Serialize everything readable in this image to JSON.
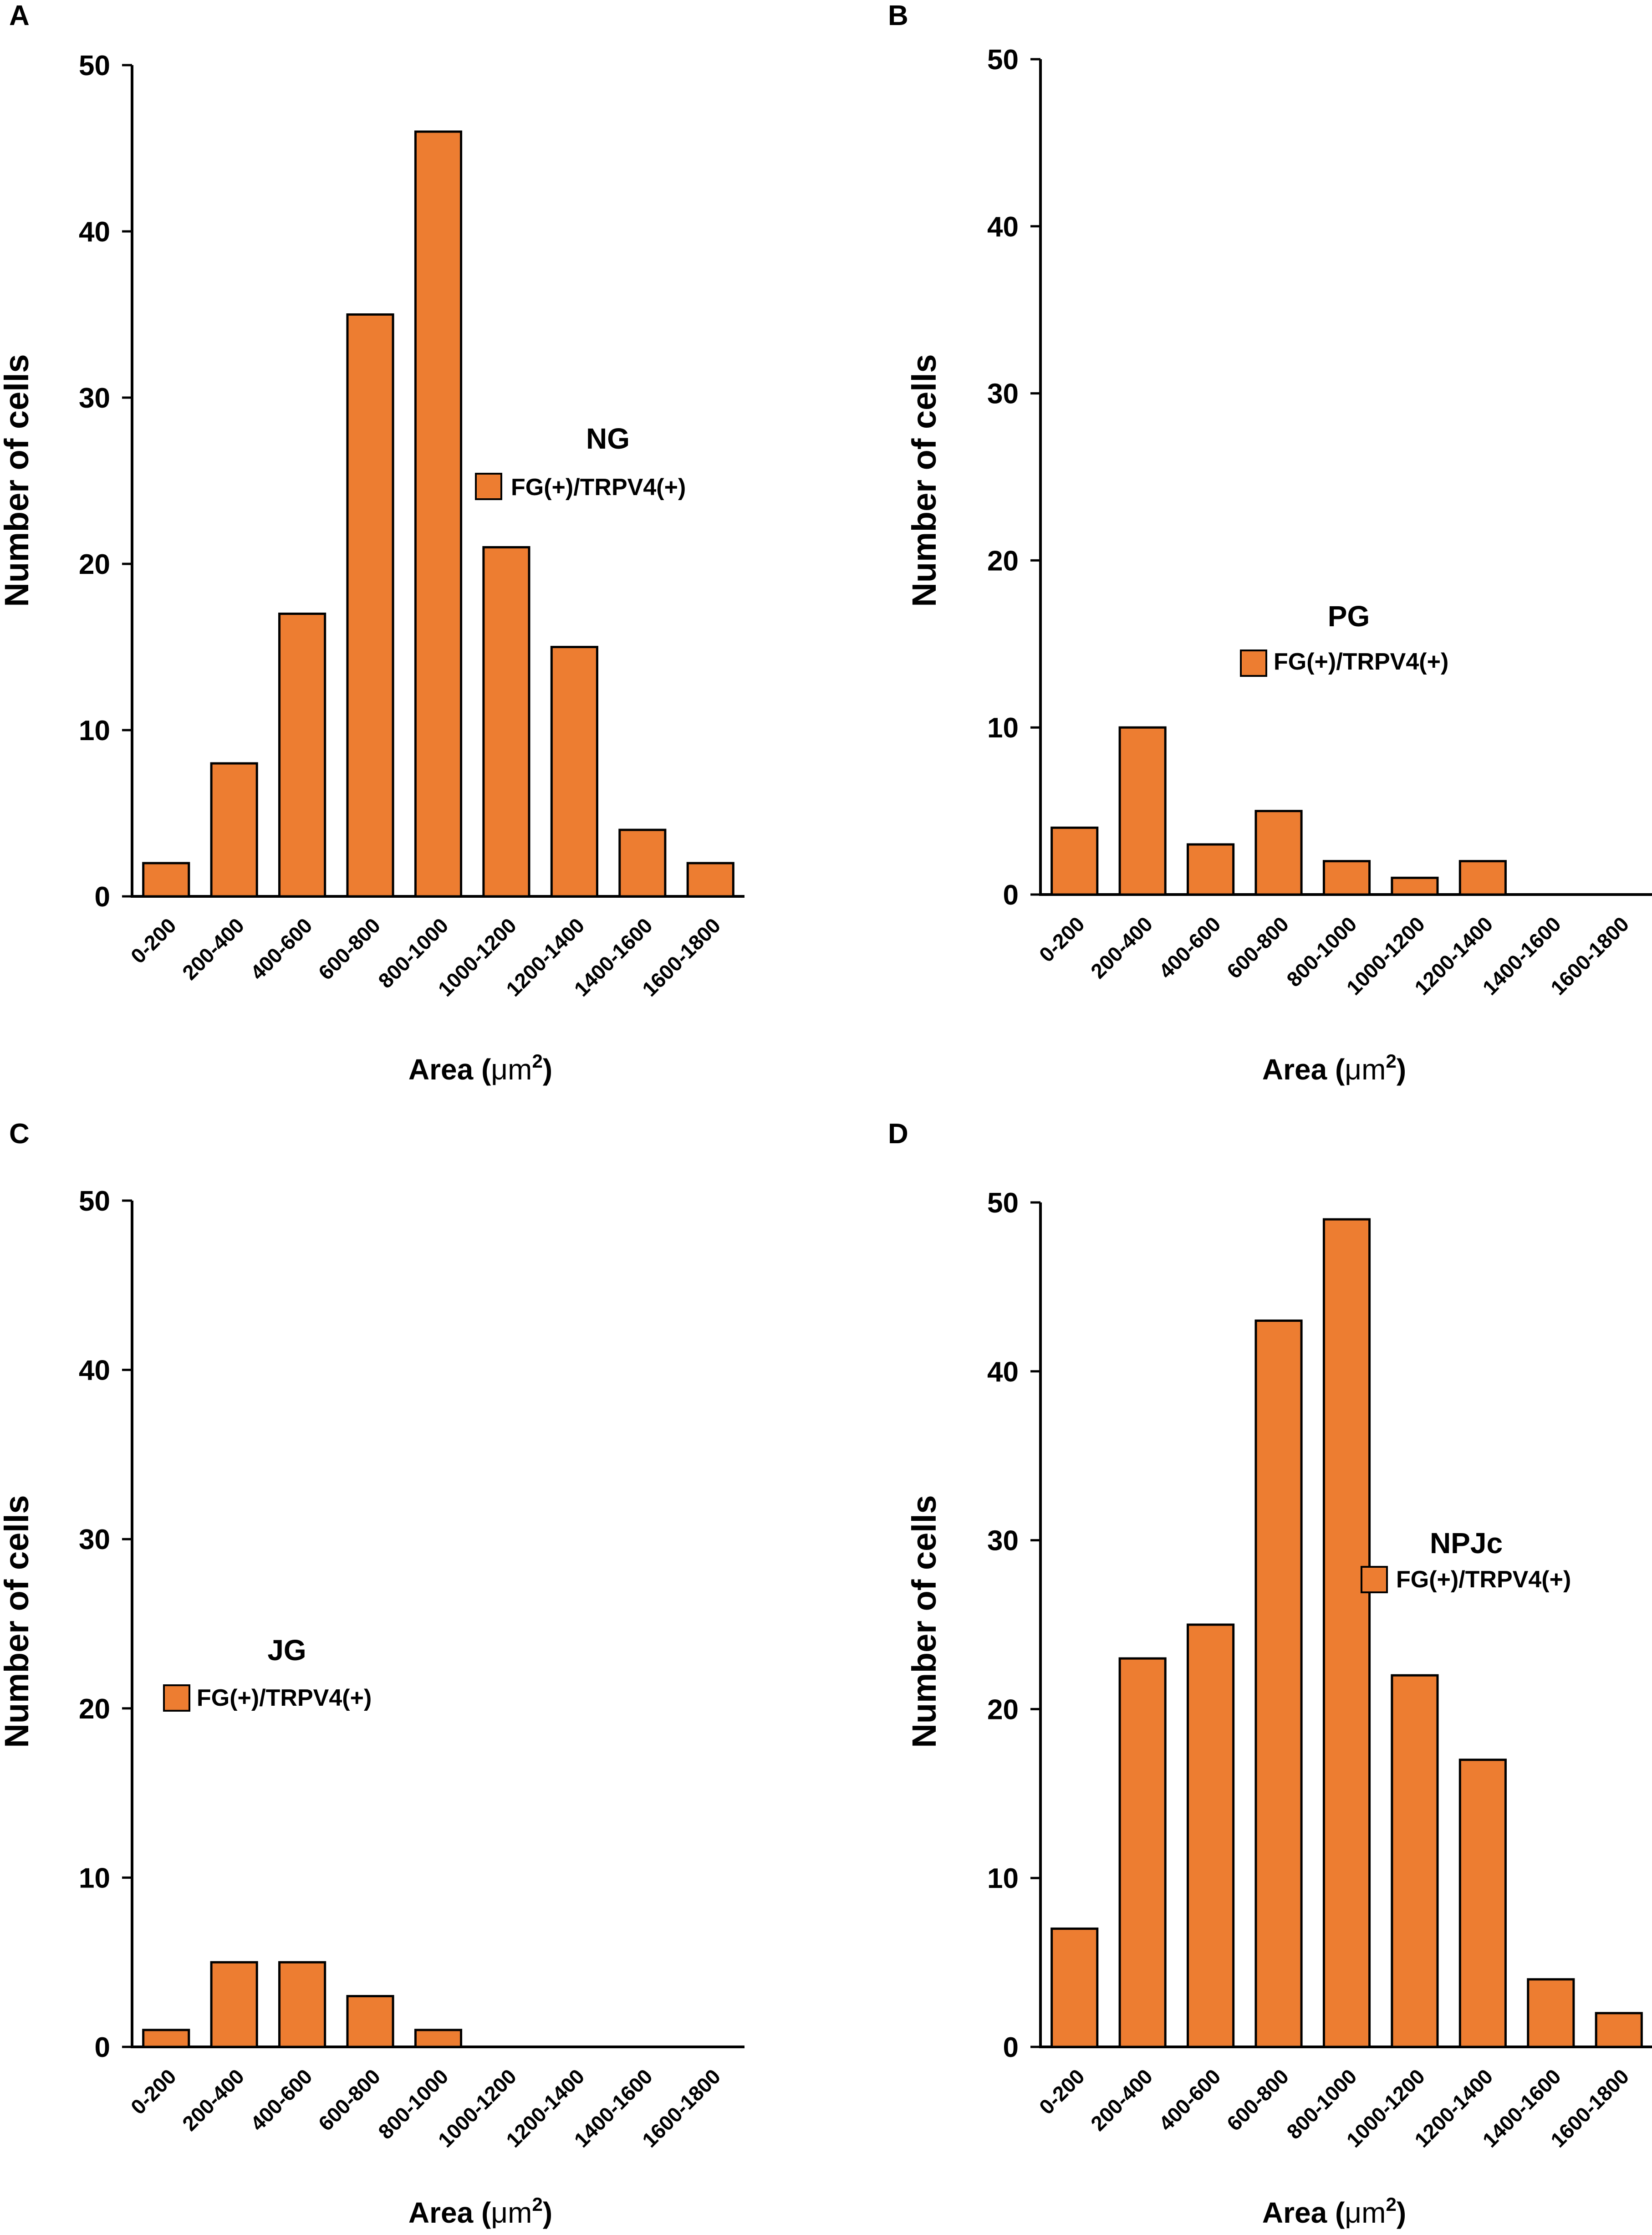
{
  "figure": {
    "colors": {
      "bar": "#ED7D31",
      "bar_stroke": "#000000",
      "axis": "#000000",
      "background": "#ffffff"
    }
  },
  "chart_data": [
    {
      "panel": "A",
      "type": "bar",
      "title": "NG",
      "legend": "FG(+)/TRPV4(+)",
      "xlabel_main": "Area (",
      "xlabel_unit": "μm",
      "xlabel_sup": "2",
      "xlabel_close": ")",
      "ylabel": "Number of cells",
      "ylim": [
        0,
        50
      ],
      "yticks": [
        0,
        10,
        20,
        30,
        40,
        50
      ],
      "categories": [
        "0-200",
        "200-400",
        "400-600",
        "600-800",
        "800-1000",
        "1000-1200",
        "1200-1400",
        "1400-1600",
        "1600-1800"
      ],
      "values": [
        2,
        8,
        17,
        35,
        46,
        21,
        15,
        4,
        2
      ]
    },
    {
      "panel": "B",
      "type": "bar",
      "title": "PG",
      "legend": "FG(+)/TRPV4(+)",
      "xlabel_main": "Area (",
      "xlabel_unit": "μm",
      "xlabel_sup": "2",
      "xlabel_close": ")",
      "ylabel": "Number of cells",
      "ylim": [
        0,
        50
      ],
      "yticks": [
        0,
        10,
        20,
        30,
        40,
        50
      ],
      "categories": [
        "0-200",
        "200-400",
        "400-600",
        "600-800",
        "800-1000",
        "1000-1200",
        "1200-1400",
        "1400-1600",
        "1600-1800"
      ],
      "values": [
        4,
        10,
        3,
        5,
        2,
        1,
        2,
        0,
        0
      ]
    },
    {
      "panel": "C",
      "type": "bar",
      "title": "JG",
      "legend": "FG(+)/TRPV4(+)",
      "xlabel_main": "Area (",
      "xlabel_unit": "μm",
      "xlabel_sup": "2",
      "xlabel_close": ")",
      "ylabel": "Number of cells",
      "ylim": [
        0,
        50
      ],
      "yticks": [
        0,
        10,
        20,
        30,
        40,
        50
      ],
      "categories": [
        "0-200",
        "200-400",
        "400-600",
        "600-800",
        "800-1000",
        "1000-1200",
        "1200-1400",
        "1400-1600",
        "1600-1800"
      ],
      "values": [
        1,
        5,
        5,
        3,
        1,
        0,
        0,
        0,
        0
      ]
    },
    {
      "panel": "D",
      "type": "bar",
      "title": "NPJc",
      "legend": "FG(+)/TRPV4(+)",
      "xlabel_main": "Area (",
      "xlabel_unit": "μm",
      "xlabel_sup": "2",
      "xlabel_close": ")",
      "ylabel": "Number of cells",
      "ylim": [
        0,
        50
      ],
      "yticks": [
        0,
        10,
        20,
        30,
        40,
        50
      ],
      "categories": [
        "0-200",
        "200-400",
        "400-600",
        "600-800",
        "800-1000",
        "1000-1200",
        "1200-1400",
        "1400-1600",
        "1600-1800"
      ],
      "values": [
        7,
        23,
        25,
        43,
        49,
        22,
        17,
        4,
        2
      ]
    }
  ]
}
